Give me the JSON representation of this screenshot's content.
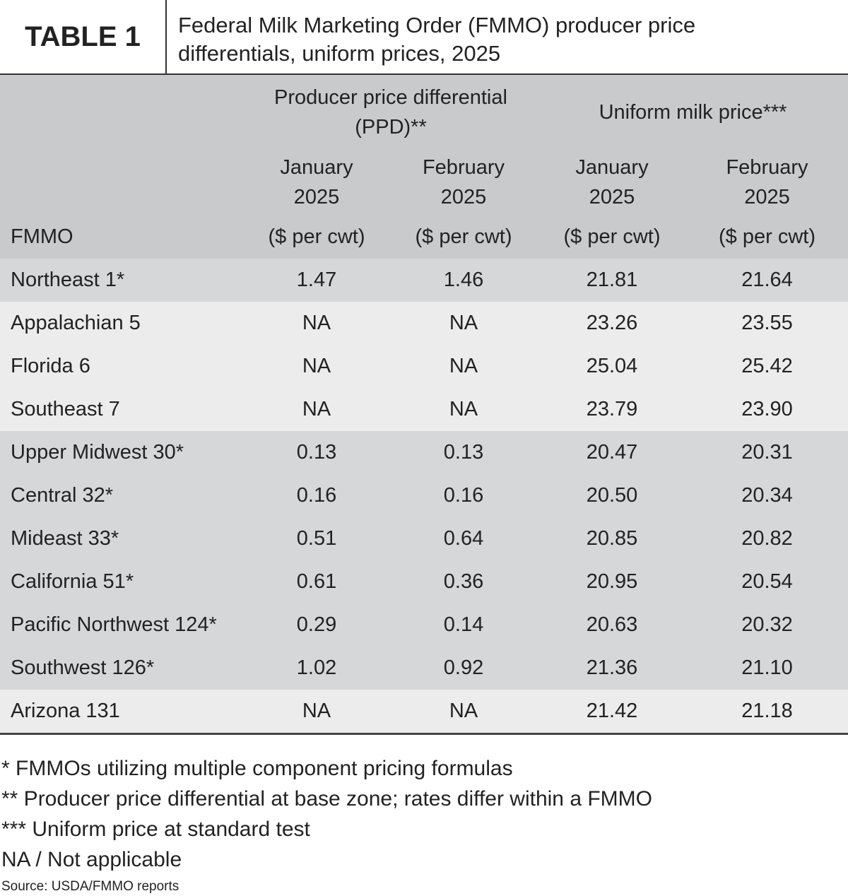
{
  "header": {
    "label": "TABLE 1",
    "title": "Federal Milk Marketing Order (FMMO) producer price differentials, uniform prices, 2025"
  },
  "table": {
    "groups": [
      "Producer price differential (PPD)**",
      "Uniform milk price***"
    ],
    "columns": [
      "FMMO",
      "January 2025",
      "February 2025",
      "January 2025",
      "February 2025"
    ],
    "units": [
      "($ per cwt)",
      "($ per cwt)",
      "($ per cwt)",
      "($ per cwt)"
    ],
    "rows": [
      [
        "Northeast 1*",
        "1.47",
        "1.46",
        "21.81",
        "21.64"
      ],
      [
        "Appalachian 5",
        "NA",
        "NA",
        "23.26",
        "23.55"
      ],
      [
        "Florida 6",
        "NA",
        "NA",
        "25.04",
        "25.42"
      ],
      [
        "Southeast 7",
        "NA",
        "NA",
        "23.79",
        "23.90"
      ],
      [
        "Upper Midwest 30*",
        "0.13",
        "0.13",
        "20.47",
        "20.31"
      ],
      [
        "Central 32*",
        "0.16",
        "0.16",
        "20.50",
        "20.34"
      ],
      [
        "Mideast 33*",
        "0.51",
        "0.64",
        "20.85",
        "20.82"
      ],
      [
        "California 51*",
        "0.61",
        "0.36",
        "20.95",
        "20.54"
      ],
      [
        "Pacific Northwest 124*",
        "0.29",
        "0.14",
        "20.63",
        "20.32"
      ],
      [
        "Southwest 126*",
        "1.02",
        "0.92",
        "21.36",
        "21.10"
      ],
      [
        "Arizona 131",
        "NA",
        "NA",
        "21.42",
        "21.18"
      ]
    ]
  },
  "footnotes": [
    "* FMMOs utilizing multiple component pricing formulas",
    "** Producer price differential at base zone; rates differ within a FMMO",
    "*** Uniform price at standard test",
    "NA / Not applicable"
  ],
  "source": "Source: USDA/FMMO reports"
}
